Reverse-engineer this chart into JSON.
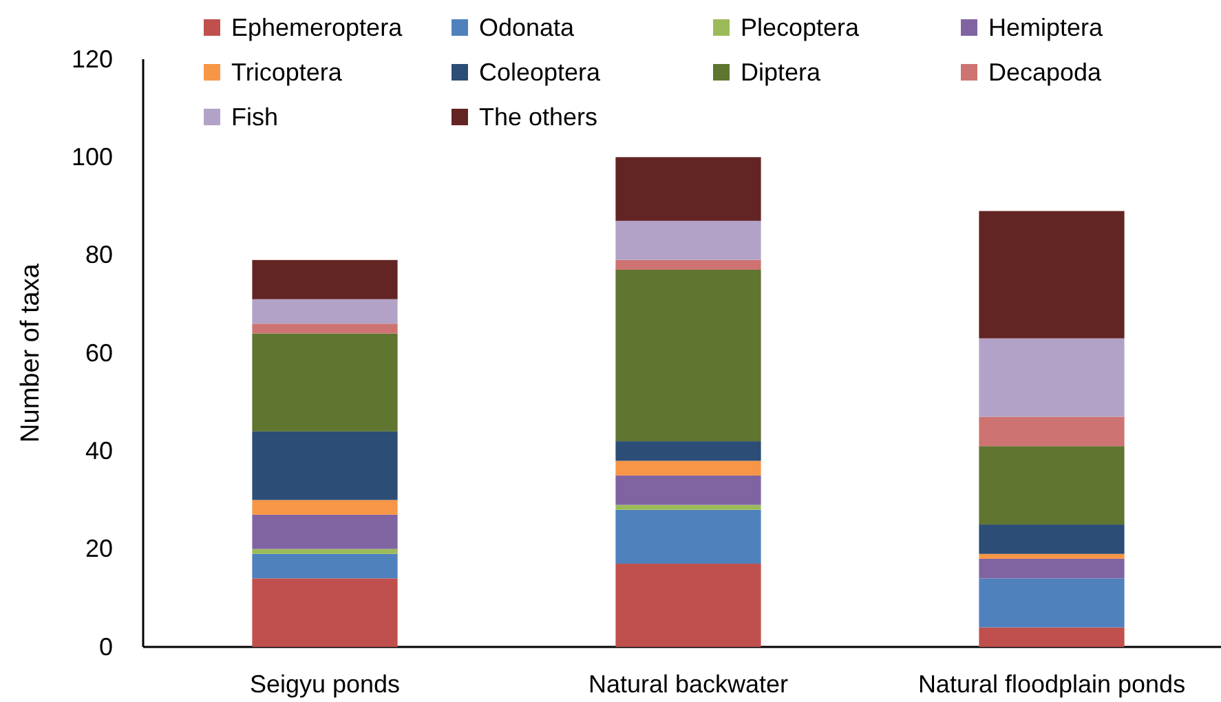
{
  "chart_data": {
    "type": "bar",
    "stacked": true,
    "ylabel": "Number of taxa",
    "categories": [
      "Seigyu ponds",
      "Natural backwater",
      "Natural floodplain ponds"
    ],
    "ylim": [
      0,
      120
    ],
    "yticks": [
      0,
      20,
      40,
      60,
      80,
      100,
      120
    ],
    "legend": "top",
    "grid": false,
    "series": [
      {
        "name": "Ephemeroptera",
        "color": "#c0504d",
        "values": [
          14,
          17,
          4
        ]
      },
      {
        "name": "Odonata",
        "color": "#4f81bd",
        "values": [
          5,
          11,
          10
        ]
      },
      {
        "name": "Plecoptera",
        "color": "#9bbb59",
        "values": [
          1,
          1,
          0
        ]
      },
      {
        "name": "Hemiptera",
        "color": "#8064a2",
        "values": [
          7,
          6,
          4
        ]
      },
      {
        "name": "Tricoptera",
        "color": "#f79646",
        "values": [
          3,
          3,
          1
        ]
      },
      {
        "name": "Coleoptera",
        "color": "#2c4d75",
        "values": [
          14,
          4,
          6
        ]
      },
      {
        "name": "Diptera",
        "color": "#5f7530",
        "values": [
          20,
          35,
          16
        ]
      },
      {
        "name": "Decapoda",
        "color": "#cd7371",
        "values": [
          2,
          2,
          6
        ]
      },
      {
        "name": "Fish",
        "color": "#b3a2c7",
        "values": [
          5,
          8,
          16
        ]
      },
      {
        "name": "The others",
        "color": "#632523",
        "values": [
          8,
          13,
          26
        ]
      }
    ]
  }
}
